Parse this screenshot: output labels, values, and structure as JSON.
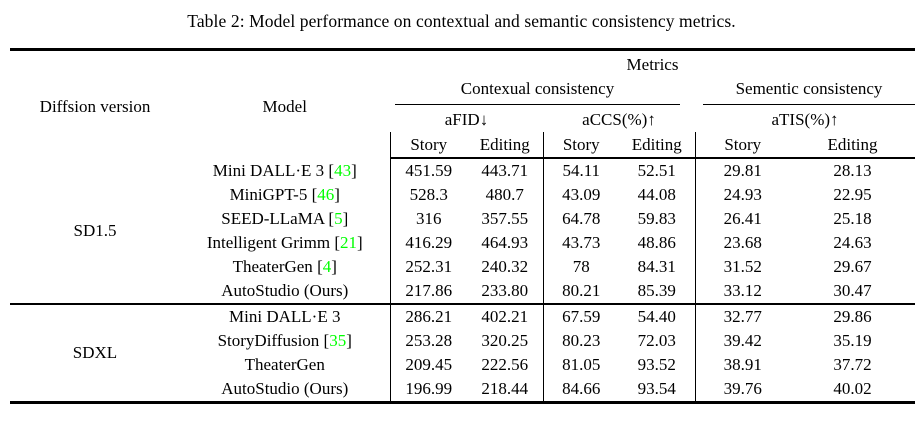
{
  "title": "Table 2: Model performance on contextual and semantic consistency metrics.",
  "colors": {
    "background": "#ffffff",
    "text": "#000000",
    "rule": "#000000",
    "citation": "#00ff00"
  },
  "header": {
    "diffusion_version": "Diffsion version",
    "model": "Model",
    "metrics": "Metrics",
    "contextual": "Contexual consistency",
    "semantic": "Sementic consistency",
    "afid": "aFID↓",
    "accs": "aCCS(%)↑",
    "atis": "aTIS(%)↑",
    "story": "Story",
    "editing": "Editing"
  },
  "groups": [
    {
      "version": "SD1.5",
      "rows": [
        {
          "model": "Mini DALL·E 3",
          "citation": "43",
          "bold": false,
          "values": [
            "451.59",
            "443.71",
            "54.11",
            "52.51",
            "29.81",
            "28.13"
          ]
        },
        {
          "model": "MiniGPT-5",
          "citation": "46",
          "bold": false,
          "values": [
            "528.3",
            "480.7",
            "43.09",
            "44.08",
            "24.93",
            "22.95"
          ]
        },
        {
          "model": "SEED-LLaMA",
          "citation": "5",
          "bold": false,
          "values": [
            "316",
            "357.55",
            "64.78",
            "59.83",
            "26.41",
            "25.18"
          ]
        },
        {
          "model": "Intelligent Grimm",
          "citation": "21",
          "bold": false,
          "values": [
            "416.29",
            "464.93",
            "43.73",
            "48.86",
            "23.68",
            "24.63"
          ]
        },
        {
          "model": "TheaterGen",
          "citation": "4",
          "bold": false,
          "values": [
            "252.31",
            "240.32",
            "78",
            "84.31",
            "31.52",
            "29.67"
          ]
        },
        {
          "model": "AutoStudio (Ours)",
          "citation": null,
          "bold": true,
          "values": [
            "217.86",
            "233.80",
            "80.21",
            "85.39",
            "33.12",
            "30.47"
          ]
        }
      ]
    },
    {
      "version": "SDXL",
      "rows": [
        {
          "model": "Mini DALL·E 3",
          "citation": null,
          "bold": false,
          "values": [
            "286.21",
            "402.21",
            "67.59",
            "54.40",
            "32.77",
            "29.86"
          ]
        },
        {
          "model": "StoryDiffusion",
          "citation": "35",
          "bold": false,
          "values": [
            "253.28",
            "320.25",
            "80.23",
            "72.03",
            "39.42",
            "35.19"
          ]
        },
        {
          "model": "TheaterGen",
          "citation": null,
          "bold": false,
          "values": [
            "209.45",
            "222.56",
            "81.05",
            "93.52",
            "38.91",
            "37.72"
          ]
        },
        {
          "model": "AutoStudio (Ours)",
          "citation": null,
          "bold": true,
          "values": [
            "196.99",
            "218.44",
            "84.66",
            "93.54",
            "39.76",
            "40.02"
          ]
        }
      ]
    }
  ]
}
